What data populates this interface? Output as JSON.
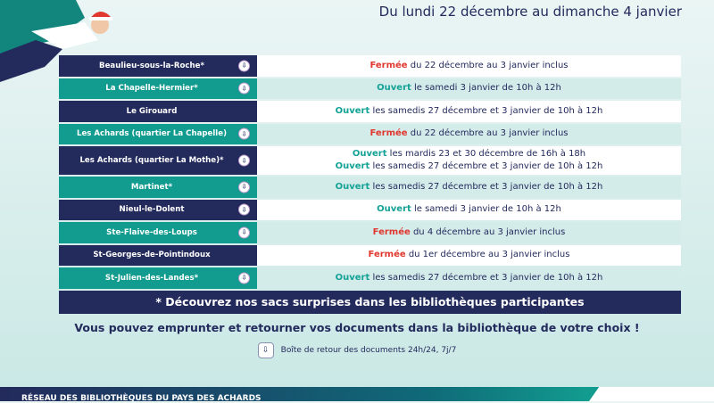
{
  "header": {
    "dates": "Du lundi 22 décembre au dimanche 4 janvier"
  },
  "rows": [
    {
      "name": "Beaulieu-sous-la-Roche*",
      "icon": true,
      "lines": [
        {
          "status": "Fermée",
          "type": "closed",
          "text": " du 22 décembre au 3 janvier inclus"
        }
      ]
    },
    {
      "name": "La Chapelle-Hermier*",
      "icon": true,
      "lines": [
        {
          "status": "Ouvert",
          "type": "open",
          "text": " le samedi 3 janvier de 10h à 12h"
        }
      ]
    },
    {
      "name": "Le Girouard",
      "icon": false,
      "lines": [
        {
          "status": "Ouvert",
          "type": "open",
          "text": " les samedis 27 décembre et 3 janvier de 10h à 12h"
        }
      ]
    },
    {
      "name": "Les Achards (quartier La Chapelle)",
      "icon": true,
      "lines": [
        {
          "status": "Fermée",
          "type": "closed",
          "text": " du 22 décembre au 3 janvier inclus"
        }
      ]
    },
    {
      "name": "Les Achards (quartier La Mothe)*",
      "icon": true,
      "lines": [
        {
          "status": "Ouvert",
          "type": "open",
          "text": " les mardis 23 et 30 décembre de 16h à 18h"
        },
        {
          "status": "Ouvert",
          "type": "open",
          "text": " les samedis 27 décembre et 3 janvier de 10h à 12h"
        }
      ]
    },
    {
      "name": "Martinet*",
      "icon": true,
      "lines": [
        {
          "status": "Ouvert",
          "type": "open",
          "text": " les samedis 27 décembre et 3 janvier de 10h à 12h"
        }
      ]
    },
    {
      "name": "Nieul-le-Dolent",
      "icon": true,
      "lines": [
        {
          "status": "Ouvert",
          "type": "open",
          "text": " le samedi 3 janvier de 10h à 12h"
        }
      ]
    },
    {
      "name": "Ste-Flaive-des-Loups",
      "icon": true,
      "lines": [
        {
          "status": "Fermée",
          "type": "closed",
          "text": " du 4 décembre au 3 janvier inclus"
        }
      ]
    },
    {
      "name": "St-Georges-de-Pointindoux",
      "icon": false,
      "lines": [
        {
          "status": "Fermée",
          "type": "closed",
          "text": " du 1er décembre au 3 janvier inclus"
        }
      ]
    },
    {
      "name": "St-Julien-des-Landes*",
      "icon": true,
      "lines": [
        {
          "status": "Ouvert",
          "type": "open",
          "text": " les samedis 27 décembre et 3 janvier de 10h à 12h"
        }
      ]
    }
  ],
  "note": "* Découvrez nos sacs surprises dans les bibliothèques participantes",
  "message": "Vous pouvez emprunter et retourner vos documents dans la bibliothèque de votre choix !",
  "return_box": "Boîte de retour des documents 24h/24, 7j/7",
  "footer": "RÉSEAU DES BIBLIOTHÈQUES DU PAYS DES ACHARDS",
  "colors": {
    "navy": "#232a5c",
    "teal": "#129b8f",
    "open": "#14a296",
    "closed": "#e0382f"
  }
}
